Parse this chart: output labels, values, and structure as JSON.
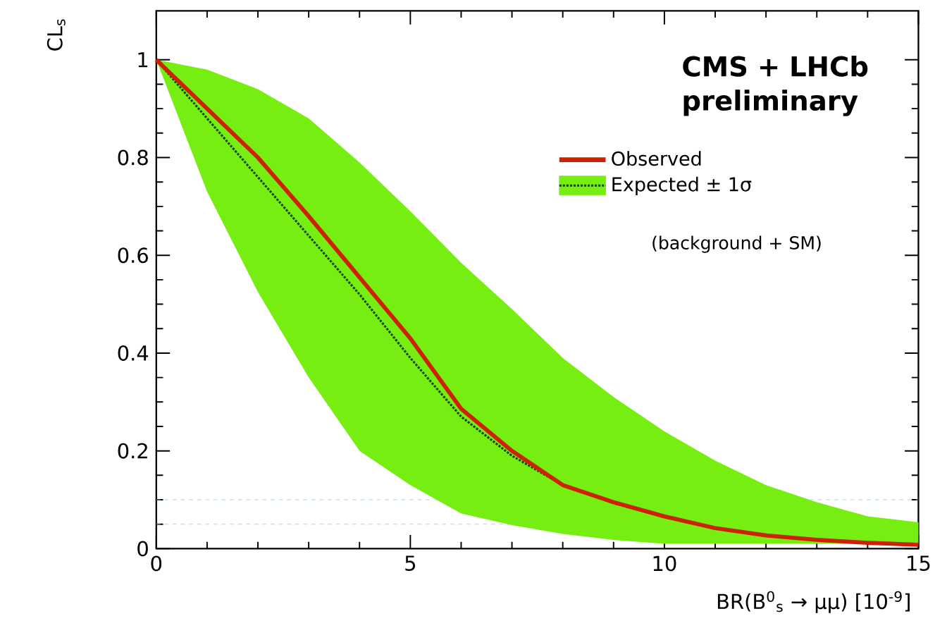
{
  "chart_data": {
    "type": "line",
    "title": "CMS + LHCb preliminary",
    "xlabel": "BR(B$^{0}$$_{s}$ → μμ) [10$^{-9}$]",
    "ylabel": "CL$_{s}$",
    "x": [
      0,
      1,
      2,
      3,
      4,
      5,
      6,
      7,
      8,
      9,
      10,
      11,
      12,
      13,
      14,
      15
    ],
    "series": [
      {
        "name": "Observed",
        "color": "#cc2200",
        "line_style": "solid",
        "values": [
          1,
          0.9,
          0.8,
          0.68,
          0.555,
          0.43,
          0.286,
          0.2,
          0.13,
          0.095,
          0.066,
          0.042,
          0.027,
          0.018,
          0.012,
          0.008
        ]
      },
      {
        "name": "Expected ± 1σ",
        "color": "#114411",
        "line_style": "dotted",
        "values": [
          1,
          0.88,
          0.76,
          0.64,
          0.52,
          0.39,
          0.27,
          0.19,
          0.13,
          0.093,
          0.065,
          0.042,
          0.027,
          0.018,
          0.012,
          0.008
        ],
        "lower": [
          1,
          0.73,
          0.525,
          0.35,
          0.2,
          0.13,
          0.072,
          0.048,
          0.03,
          0.018,
          0.01,
          0.01,
          0.01,
          0.01,
          0.01,
          0.01
        ],
        "upper": [
          1,
          0.98,
          0.94,
          0.88,
          0.79,
          0.69,
          0.585,
          0.49,
          0.39,
          0.31,
          0.24,
          0.18,
          0.13,
          0.095,
          0.066,
          0.054
        ]
      }
    ],
    "annotations": [
      "(background + SM)"
    ],
    "ref_lines": [
      {
        "axis": "y",
        "value": 0.1,
        "color": "#88ccdd",
        "line_style": "dashed"
      },
      {
        "axis": "y",
        "value": 0.05,
        "color": "#88ccdd",
        "line_style": "dashed"
      }
    ],
    "xlim": [
      0,
      15
    ],
    "ylim": [
      0,
      1.1
    ],
    "xticks": [
      0,
      5,
      10,
      15
    ],
    "yticks": [
      0,
      0.2,
      0.4,
      0.6,
      0.8,
      1
    ],
    "legend": "top right",
    "marker": "none"
  }
}
